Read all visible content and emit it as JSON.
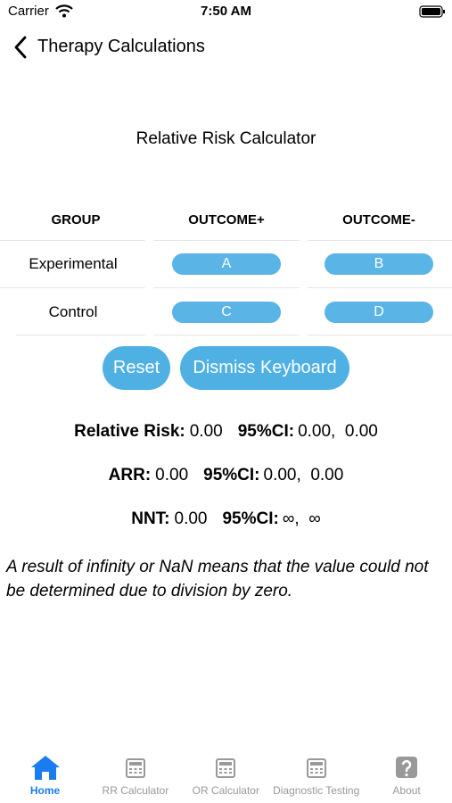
{
  "status_bar": {
    "carrier": "Carrier",
    "time": "7:50 AM"
  },
  "nav": {
    "back_title": "Therapy Calculations"
  },
  "calculator": {
    "title": "Relative Risk Calculator",
    "headers": [
      "GROUP",
      "OUTCOME+",
      "OUTCOME-"
    ],
    "rows": [
      {
        "group": "Experimental",
        "inputs": [
          "A",
          "B"
        ]
      },
      {
        "group": "Control",
        "inputs": [
          "C",
          "D"
        ]
      }
    ],
    "buttons": [
      "Reset",
      "Dismiss Keyboard"
    ]
  },
  "results": [
    {
      "label": "Relative Risk:",
      "value": "0.00",
      "ci_label": "95%CI:",
      "ci": "0.00,  0.00"
    },
    {
      "label": "ARR:",
      "value": "0.00",
      "ci_label": "95%CI:",
      "ci": "0.00,  0.00"
    },
    {
      "label": "NNT:",
      "value": "0.00",
      "ci_label": "95%CI:",
      "ci": "∞,  ∞"
    }
  ],
  "note": "A result of infinity or NaN means that the value could not be determined due to division by zero.",
  "tab_bar": [
    {
      "label": "Home",
      "active": true
    },
    {
      "label": "RR Calculator",
      "active": false
    },
    {
      "label": "OR Calculator",
      "active": false
    },
    {
      "label": "Diagnostic Testing",
      "active": false
    },
    {
      "label": "About",
      "active": false
    }
  ]
}
